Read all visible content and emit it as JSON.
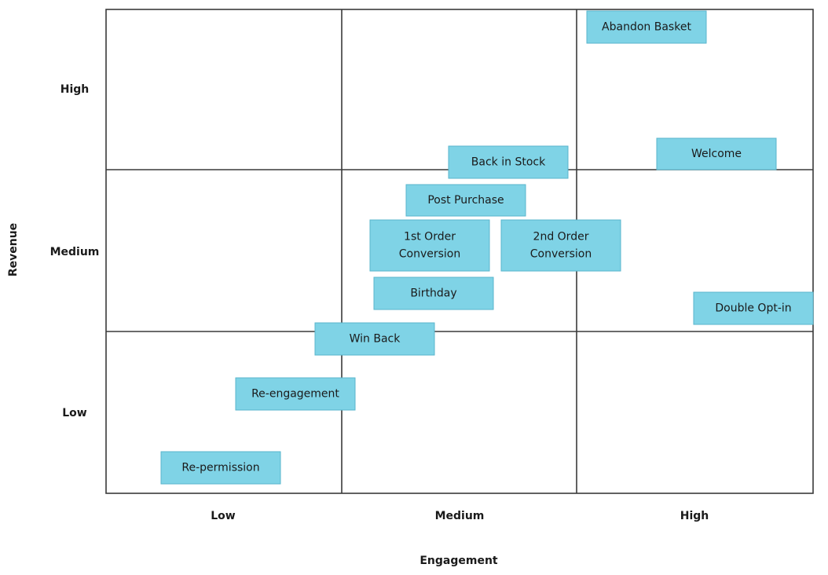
{
  "axes": {
    "x_title": "Engagement",
    "y_title": "Revenue",
    "x_levels": [
      "Low",
      "Medium",
      "High"
    ],
    "y_levels": [
      "High",
      "Medium",
      "Low"
    ]
  },
  "colors": {
    "box_fill": "#7fd3e6",
    "box_border": "#5ab6cc",
    "grid": "#3a3a3a",
    "text": "#1a1a1a"
  },
  "items": [
    {
      "label": [
        "Abandon Basket"
      ]
    },
    {
      "label": [
        "Welcome"
      ]
    },
    {
      "label": [
        "Back in Stock"
      ]
    },
    {
      "label": [
        "Post Purchase"
      ]
    },
    {
      "label": [
        "1st Order",
        "Conversion"
      ]
    },
    {
      "label": [
        "2nd Order",
        "Conversion"
      ]
    },
    {
      "label": [
        "Birthday"
      ]
    },
    {
      "label": [
        "Double Opt-in"
      ]
    },
    {
      "label": [
        "Win Back"
      ]
    },
    {
      "label": [
        "Re-engagement"
      ]
    },
    {
      "label": [
        "Re-permission"
      ]
    }
  ]
}
